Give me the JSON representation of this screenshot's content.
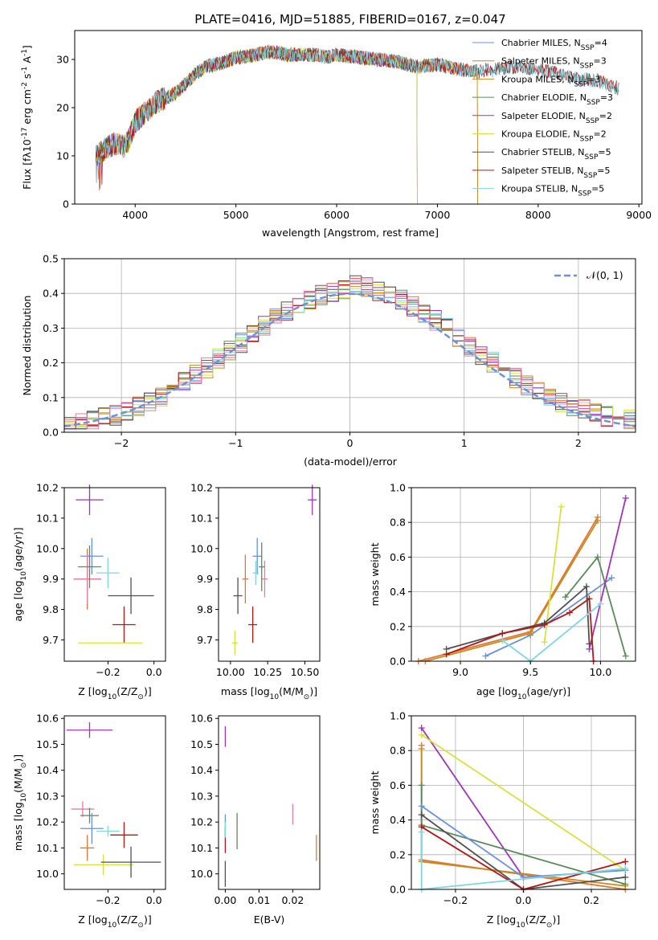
{
  "chart_data": [
    {
      "id": "spectrum",
      "type": "line",
      "title": "PLATE=0416, MJD=51885, FIBERID=0167, z=0.047",
      "xlabel": "wavelength [Angstrom, rest frame]",
      "ylabel_parts": [
        "Flux [f",
        "λ",
        "10",
        "-17",
        " erg cm",
        "-2",
        " s",
        "-1",
        " A",
        "-1",
        "]"
      ],
      "xlim": [
        3400,
        9030
      ],
      "ylim": [
        0,
        36
      ],
      "xticks": [
        4000,
        5000,
        6000,
        7000,
        8000,
        9000
      ],
      "yticks": [
        0,
        10,
        20,
        30
      ],
      "continuum": {
        "x": [
          3610,
          3700,
          3800,
          3900,
          3950,
          4000,
          4100,
          4200,
          4300,
          4400,
          4500,
          4600,
          4700,
          4800,
          4900,
          5000,
          5100,
          5200,
          5300,
          5400,
          5500,
          5600,
          5700,
          5800,
          5900,
          6000,
          6200,
          6400,
          6600,
          6800,
          7000,
          7200,
          7400,
          7600,
          7800,
          8000,
          8200,
          8400,
          8600,
          8800
        ],
        "y": [
          10,
          11.5,
          12.5,
          12,
          14,
          17,
          19,
          21,
          22,
          23,
          25,
          27,
          28.5,
          29,
          29.5,
          30.5,
          30.5,
          31,
          31.5,
          31.5,
          31,
          31,
          31,
          31,
          30.5,
          31,
          30.5,
          30,
          29.5,
          28.5,
          29,
          28,
          27.5,
          28,
          28.5,
          28,
          27,
          26,
          25.5,
          24
        ]
      },
      "series": [
        {
          "name_parts": [
            "Chabrier MILES, N",
            "SSP",
            "=4"
          ],
          "color": "#6a8fdc",
          "xend": 7400
        },
        {
          "name_parts": [
            "Salpeter MILES, N",
            "SSP",
            "=3"
          ],
          "color": "#e0773a",
          "xend": 7400
        },
        {
          "name_parts": [
            "Kroupa MILES, N",
            "SSP",
            "=3"
          ],
          "color": "#c98a1c",
          "xend": 7400
        },
        {
          "name_parts": [
            "Chabrier ELODIE, N",
            "SSP",
            "=3"
          ],
          "color": "#5a8a5a",
          "xend": 6800
        },
        {
          "name_parts": [
            "Salpeter ELODIE, N",
            "SSP",
            "=2"
          ],
          "color": "#9c35b8",
          "xend": 6800
        },
        {
          "name_parts": [
            "Kroupa ELODIE, N",
            "SSP",
            "=2"
          ],
          "color": "#d8e040",
          "xend": 6800
        },
        {
          "name_parts": [
            "Chabrier STELIB, N",
            "SSP",
            "=5"
          ],
          "color": "#505050",
          "xend": 8800
        },
        {
          "name_parts": [
            "Salpeter STELIB, N",
            "SSP",
            "=5"
          ],
          "color": "#b01818",
          "xend": 8800
        },
        {
          "name_parts": [
            "Kroupa STELIB, N",
            "SSP",
            "=5"
          ],
          "color": "#7fd6e0",
          "xend": 8800
        }
      ]
    },
    {
      "id": "residuals",
      "type": "histogram",
      "xlabel": "(data-model)/error",
      "ylabel": "Normed distribution",
      "xlim": [
        -2.5,
        2.5
      ],
      "ylim": [
        0,
        0.5
      ],
      "xticks": [
        -2,
        -1,
        0,
        1,
        2
      ],
      "yticks": [
        0.0,
        0.1,
        0.2,
        0.3,
        0.4,
        0.5
      ],
      "grid": true,
      "legend": {
        "label": "𝒩(0, 1)",
        "placement": "top-right"
      },
      "bin_edges_range": [
        -2.5,
        2.5
      ],
      "bins": 50,
      "series_colors": [
        "#6a8fdc",
        "#e0773a",
        "#c98a1c",
        "#5a8a5a",
        "#9c35b8",
        "#d8e040",
        "#505050",
        "#b01818",
        "#7fd6e0",
        "#e87aa8"
      ]
    },
    {
      "id": "age-vs-Z",
      "type": "errorbar",
      "xlabel_parts": [
        "Z [log",
        "10",
        "(Z/Z",
        "⊙",
        ")]"
      ],
      "ylabel_parts": [
        "age  [log",
        "10",
        "(age/yr)]"
      ],
      "xlim": [
        -0.39,
        0.05
      ],
      "ylim": [
        9.63,
        10.2
      ],
      "xticks": [
        -0.2,
        0.0
      ],
      "yticks": [
        9.7,
        9.8,
        9.9,
        10.0,
        10.1,
        10.2
      ],
      "points": [
        {
          "x": -0.28,
          "y": 10.16,
          "xe": 0.06,
          "ye": 0.05,
          "color": "#9c35b8"
        },
        {
          "x": -0.27,
          "y": 9.975,
          "xe": 0.05,
          "ye": 0.06,
          "color": "#6a8fdc"
        },
        {
          "x": -0.29,
          "y": 9.9,
          "xe": 0.06,
          "ye": 0.1,
          "color": "#e0773a"
        },
        {
          "x": -0.29,
          "y": 9.9,
          "xe": 0.06,
          "ye": 0.08,
          "color": "#e87aa8"
        },
        {
          "x": -0.28,
          "y": 9.94,
          "xe": 0.05,
          "ye": 0.07,
          "color": "#5a8a5a"
        },
        {
          "x": -0.2,
          "y": 9.92,
          "xe": 0.05,
          "ye": 0.05,
          "color": "#7fd6e0"
        },
        {
          "x": -0.1,
          "y": 9.845,
          "xe": 0.1,
          "ye": 0.06,
          "color": "#505050"
        },
        {
          "x": -0.13,
          "y": 9.75,
          "xe": 0.05,
          "ye": 0.06,
          "color": "#b01818"
        },
        {
          "x": -0.19,
          "y": 9.69,
          "xe": 0.14,
          "ye": 0.0,
          "color": "#d8e040"
        }
      ]
    },
    {
      "id": "age-vs-mass",
      "type": "errorbar",
      "xlabel_parts": [
        "mass [log",
        "10",
        "(M/M",
        "⊙",
        ")]"
      ],
      "xlim": [
        9.92,
        10.6
      ],
      "ylim": [
        9.63,
        10.2
      ],
      "xticks": [
        10.0,
        10.25,
        10.5
      ],
      "xtick_labels": [
        "10.00",
        "10.25",
        "10.50"
      ],
      "yticks": [
        9.7,
        9.8,
        9.9,
        10.0,
        10.1,
        10.2
      ],
      "points": [
        {
          "x": 10.55,
          "y": 10.16,
          "xe": 0.03,
          "ye": 0.05,
          "color": "#9c35b8"
        },
        {
          "x": 10.18,
          "y": 9.975,
          "xe": 0.03,
          "ye": 0.06,
          "color": "#6a8fdc"
        },
        {
          "x": 10.1,
          "y": 9.9,
          "xe": 0.02,
          "ye": 0.08,
          "color": "#e0773a"
        },
        {
          "x": 10.23,
          "y": 9.9,
          "xe": 0.02,
          "ye": 0.06,
          "color": "#e87aa8"
        },
        {
          "x": 10.21,
          "y": 9.94,
          "xe": 0.02,
          "ye": 0.08,
          "color": "#5a8a5a"
        },
        {
          "x": 10.17,
          "y": 9.92,
          "xe": 0.02,
          "ye": 0.04,
          "color": "#7fd6e0"
        },
        {
          "x": 10.05,
          "y": 9.845,
          "xe": 0.03,
          "ye": 0.06,
          "color": "#505050"
        },
        {
          "x": 10.15,
          "y": 9.75,
          "xe": 0.03,
          "ye": 0.06,
          "color": "#b01818"
        },
        {
          "x": 10.03,
          "y": 9.69,
          "xe": 0.02,
          "ye": 0.04,
          "color": "#d8e040"
        }
      ]
    },
    {
      "id": "massweight-vs-age",
      "type": "line",
      "xlabel_parts": [
        "age  [log",
        "10",
        "(age/yr)]"
      ],
      "ylabel": "mass weight",
      "xlim": [
        8.65,
        10.25
      ],
      "ylim": [
        0,
        1
      ],
      "xticks": [
        9.0,
        9.5,
        10.0
      ],
      "yticks": [
        0.0,
        0.2,
        0.4,
        0.6,
        0.8,
        1.0
      ],
      "grid": true,
      "series": [
        {
          "color": "#6a8fdc",
          "x": [
            9.18,
            9.5,
            10.08
          ],
          "y": [
            0.03,
            0.15,
            0.48
          ]
        },
        {
          "color": "#e0773a",
          "x": [
            8.7,
            9.5,
            9.98
          ],
          "y": [
            0.0,
            0.17,
            0.83
          ]
        },
        {
          "color": "#c98a1c",
          "x": [
            8.75,
            9.5,
            9.98
          ],
          "y": [
            0.0,
            0.16,
            0.81
          ]
        },
        {
          "color": "#5a8a5a",
          "x": [
            9.75,
            9.98,
            10.18
          ],
          "y": [
            0.37,
            0.6,
            0.03
          ]
        },
        {
          "color": "#9c35b8",
          "x": [
            9.92,
            10.18
          ],
          "y": [
            0.07,
            0.94
          ]
        },
        {
          "color": "#d8e040",
          "x": [
            9.6,
            9.72
          ],
          "y": [
            0.11,
            0.89
          ]
        },
        {
          "color": "#505050",
          "x": [
            8.9,
            9.3,
            9.6,
            9.9,
            9.92
          ],
          "y": [
            0.07,
            0.16,
            0.22,
            0.43,
            0.1
          ]
        },
        {
          "color": "#b01818",
          "x": [
            8.9,
            9.3,
            9.6,
            9.78,
            9.92,
            9.95
          ],
          "y": [
            0.04,
            0.16,
            0.21,
            0.28,
            0.36,
            0.0
          ]
        },
        {
          "color": "#7fd6e0",
          "x": [
            9.3,
            9.5,
            10.0
          ],
          "y": [
            0.12,
            0.0,
            0.33
          ]
        }
      ]
    },
    {
      "id": "mass-vs-Z",
      "type": "errorbar",
      "xlabel_parts": [
        "Z [log",
        "10",
        "(Z/Z",
        "⊙",
        ")]"
      ],
      "ylabel_parts": [
        "mass [log",
        "10",
        "(M/M",
        "⊙",
        ")]"
      ],
      "xlim": [
        -0.39,
        0.05
      ],
      "ylim": [
        9.94,
        10.61
      ],
      "xticks": [
        -0.2,
        0.0
      ],
      "yticks": [
        10.0,
        10.1,
        10.2,
        10.3,
        10.4,
        10.5,
        10.6
      ],
      "points": [
        {
          "x": -0.28,
          "y": 10.555,
          "xe": 0.1,
          "ye": 0.03,
          "color": "#9c35b8"
        },
        {
          "x": -0.31,
          "y": 10.25,
          "xe": 0.05,
          "ye": 0.03,
          "color": "#e87aa8"
        },
        {
          "x": -0.28,
          "y": 10.225,
          "xe": 0.04,
          "ye": 0.03,
          "color": "#5a8a5a"
        },
        {
          "x": -0.27,
          "y": 10.175,
          "xe": 0.05,
          "ye": 0.06,
          "color": "#6a8fdc"
        },
        {
          "x": -0.2,
          "y": 10.165,
          "xe": 0.05,
          "ye": 0.02,
          "color": "#7fd6e0"
        },
        {
          "x": -0.13,
          "y": 10.15,
          "xe": 0.06,
          "ye": 0.05,
          "color": "#b01818"
        },
        {
          "x": -0.29,
          "y": 10.1,
          "xe": 0.03,
          "ye": 0.05,
          "color": "#e0773a"
        },
        {
          "x": -0.22,
          "y": 10.035,
          "xe": 0.13,
          "ye": 0.04,
          "color": "#d8e040"
        },
        {
          "x": -0.1,
          "y": 10.045,
          "xe": 0.13,
          "ye": 0.06,
          "color": "#505050"
        }
      ]
    },
    {
      "id": "mass-vs-ebv",
      "type": "errorbar",
      "xlabel": "E(B-V)",
      "xlim": [
        -0.002,
        0.028
      ],
      "ylim": [
        9.94,
        10.61
      ],
      "xticks": [
        0.0,
        0.01,
        0.02
      ],
      "xtick_labels": [
        "0.00",
        "0.01",
        "0.02"
      ],
      "yticks": [
        10.0,
        10.1,
        10.2,
        10.3,
        10.4,
        10.5,
        10.6
      ],
      "points": [
        {
          "x": 0.0,
          "y": 10.53,
          "xe": 0,
          "ye": 0.04,
          "color": "#9c35b8"
        },
        {
          "x": 0.0,
          "y": 10.19,
          "xe": 0,
          "ye": 0.04,
          "color": "#6a8fdc"
        },
        {
          "x": 0.0,
          "y": 10.13,
          "xe": 0,
          "ye": 0.05,
          "color": "#b01818"
        },
        {
          "x": 0.0,
          "y": 10.0,
          "xe": 0,
          "ye": 0.05,
          "color": "#505050"
        },
        {
          "x": 0.0,
          "y": 10.17,
          "xe": 0,
          "ye": 0.03,
          "color": "#7fd6e0"
        },
        {
          "x": 0.0035,
          "y": 10.165,
          "xe": 0,
          "ye": 0.07,
          "color": "#5a8a5a"
        },
        {
          "x": 0.02,
          "y": 10.23,
          "xe": 0,
          "ye": 0.04,
          "color": "#e87aa8"
        },
        {
          "x": 0.027,
          "y": 10.1,
          "xe": 0,
          "ye": 0.05,
          "color": "#e0773a"
        }
      ]
    },
    {
      "id": "massweight-vs-Z",
      "type": "line",
      "xlabel_parts": [
        "Z [log",
        "10",
        "(Z/Z",
        "⊙",
        ")]"
      ],
      "ylabel": "mass weight",
      "xlim": [
        -0.33,
        0.33
      ],
      "ylim": [
        0,
        1
      ],
      "xticks": [
        -0.2,
        0.0,
        0.2
      ],
      "yticks": [
        0.0,
        0.2,
        0.4,
        0.6,
        0.8,
        1.0
      ],
      "grid": true,
      "series": [
        {
          "color": "#9c35b8",
          "x": [
            -0.3,
            0.0
          ],
          "y": [
            0.93,
            0.07
          ]
        },
        {
          "color": "#d8e040",
          "x": [
            -0.3,
            0.3
          ],
          "y": [
            0.89,
            0.11
          ]
        },
        {
          "color": "#e0773a",
          "x": [
            -0.3,
            -0.3,
            0.3
          ],
          "y": [
            0.83,
            0.17,
            0.0
          ]
        },
        {
          "color": "#c98a1c",
          "x": [
            -0.3,
            -0.3,
            0.3
          ],
          "y": [
            0.81,
            0.16,
            0.02
          ]
        },
        {
          "color": "#5a8a5a",
          "x": [
            -0.3,
            -0.3,
            0.3
          ],
          "y": [
            0.6,
            0.37,
            0.03
          ]
        },
        {
          "color": "#6a8fdc",
          "x": [
            -0.3,
            0.0,
            0.3
          ],
          "y": [
            0.48,
            0.07,
            0.11
          ]
        },
        {
          "color": "#505050",
          "x": [
            -0.3,
            0.0,
            0.3
          ],
          "y": [
            0.43,
            0.0,
            0.07
          ]
        },
        {
          "color": "#b01818",
          "x": [
            -0.3,
            0.0,
            0.3
          ],
          "y": [
            0.36,
            0.0,
            0.16
          ]
        },
        {
          "color": "#7fd6e0",
          "x": [
            -0.3,
            -0.3,
            0.3
          ],
          "y": [
            0.33,
            0.0,
            0.12
          ]
        }
      ]
    }
  ]
}
